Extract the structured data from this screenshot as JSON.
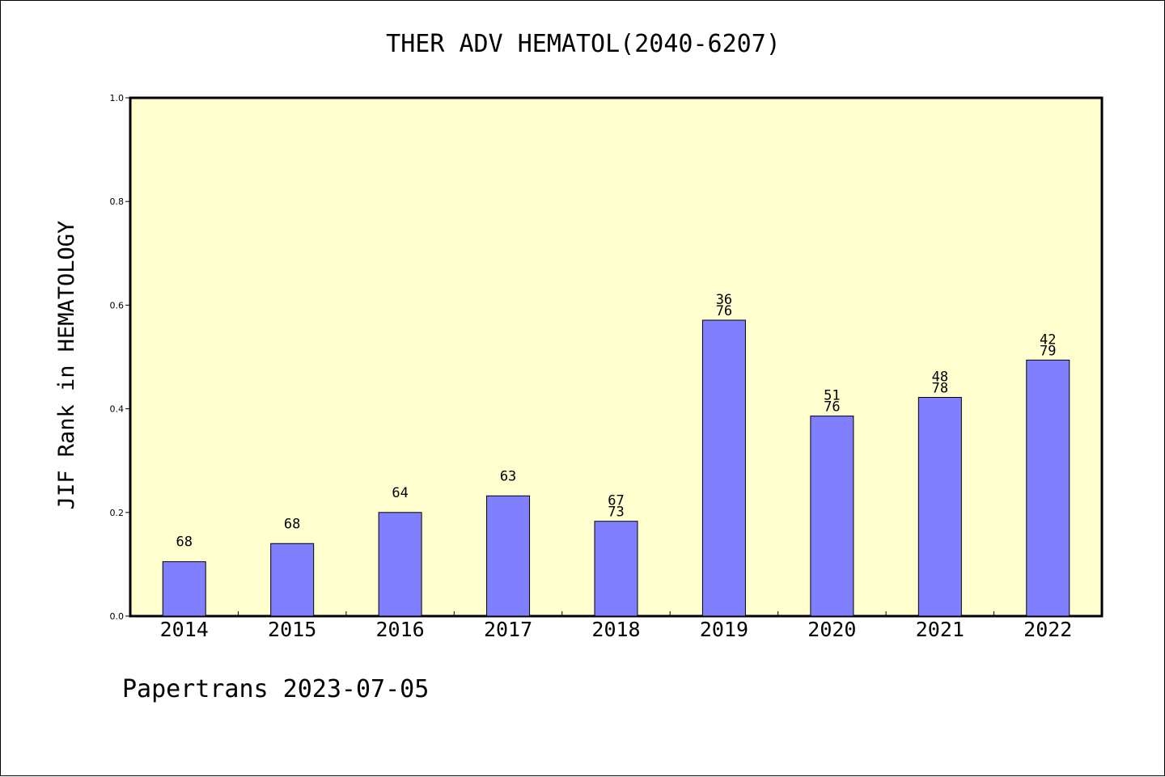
{
  "chart_data": {
    "type": "bar",
    "title": "THER ADV HEMATOL(2040-6207)",
    "ylabel": "JIF Rank in HEMATOLOGY",
    "xlabel": "",
    "footer": "Papertrans 2023-07-05",
    "ylim": [
      0,
      1.0
    ],
    "yticks": [
      "0.0",
      "0.2",
      "0.4",
      "0.6",
      "0.8",
      "1.0"
    ],
    "categories": [
      "2014",
      "2015",
      "2016",
      "2017",
      "2018",
      "2019",
      "2020",
      "2021",
      "2022"
    ],
    "values": [
      0.105,
      0.14,
      0.2,
      0.232,
      0.183,
      0.571,
      0.386,
      0.422,
      0.494
    ],
    "labels": [
      [
        "68"
      ],
      [
        "68"
      ],
      [
        "64"
      ],
      [
        "63"
      ],
      [
        "67",
        "73"
      ],
      [
        "36",
        "76"
      ],
      [
        "51",
        "76"
      ],
      [
        "48",
        "78"
      ],
      [
        "42",
        "79"
      ]
    ],
    "grid": false,
    "colors": {
      "plot_background": "#FFFFD0",
      "bar_fill": "#8080FF",
      "bar_stroke": "#000000"
    }
  }
}
